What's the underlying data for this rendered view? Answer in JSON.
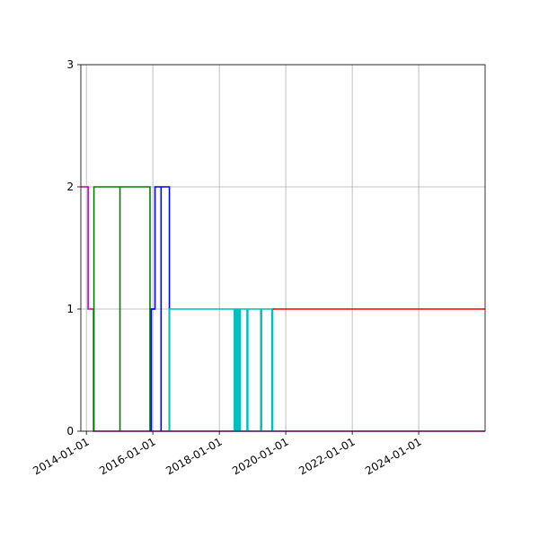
{
  "chart_data": {
    "type": "line",
    "title": "",
    "xlabel": "",
    "ylabel": "",
    "x_axis_type": "date",
    "xlim": [
      "2013-11-01",
      "2025-12-31"
    ],
    "ylim": [
      0,
      3
    ],
    "x_ticks": [
      "2014-01-01",
      "2016-01-01",
      "2018-01-01",
      "2020-01-01",
      "2022-01-01",
      "2024-01-01"
    ],
    "y_ticks": [
      0,
      1,
      2,
      3
    ],
    "grid": true,
    "legend": "none",
    "step_style": "post",
    "series": [
      {
        "color": "#bf00bf",
        "points": [
          [
            "2013-11-01",
            2
          ],
          [
            "2014-01-20",
            2
          ],
          [
            "2014-01-20",
            1
          ],
          [
            "2014-03-20",
            1
          ],
          [
            "2014-03-20",
            0
          ],
          [
            "2025-12-31",
            0
          ]
        ]
      },
      {
        "color": "#008000",
        "points": [
          [
            "2014-03-25",
            0
          ],
          [
            "2014-03-25",
            2
          ],
          [
            "2015-01-05",
            2
          ],
          [
            "2015-01-05",
            0
          ],
          [
            "2015-01-05",
            2
          ],
          [
            "2015-12-01",
            2
          ],
          [
            "2015-12-01",
            0
          ],
          [
            "2015-12-01",
            1
          ],
          [
            "2016-01-20",
            1
          ]
        ]
      },
      {
        "color": "#0000ff",
        "points": [
          [
            "2015-12-15",
            0
          ],
          [
            "2015-12-15",
            1
          ],
          [
            "2016-01-25",
            1
          ],
          [
            "2016-01-25",
            2
          ],
          [
            "2016-04-01",
            2
          ],
          [
            "2016-04-01",
            0
          ],
          [
            "2016-04-01",
            2
          ],
          [
            "2016-07-01",
            2
          ],
          [
            "2016-07-01",
            0
          ]
        ]
      },
      {
        "color": "#00bfbf",
        "points": [
          [
            "2016-07-01",
            0
          ],
          [
            "2016-07-01",
            1
          ],
          [
            "2018-06-15",
            1
          ],
          [
            "2018-06-15",
            0
          ],
          [
            "2018-06-22",
            0
          ],
          [
            "2018-06-22",
            1
          ],
          [
            "2018-07-01",
            1
          ],
          [
            "2018-07-01",
            0
          ],
          [
            "2018-07-10",
            0
          ],
          [
            "2018-07-10",
            1
          ],
          [
            "2018-07-20",
            1
          ],
          [
            "2018-07-20",
            0
          ],
          [
            "2018-07-30",
            0
          ],
          [
            "2018-07-30",
            1
          ],
          [
            "2018-08-10",
            1
          ],
          [
            "2018-08-10",
            0
          ],
          [
            "2018-08-20",
            0
          ],
          [
            "2018-08-20",
            1
          ],
          [
            "2018-11-01",
            1
          ],
          [
            "2018-11-01",
            0
          ],
          [
            "2018-11-10",
            0
          ],
          [
            "2018-11-10",
            1
          ],
          [
            "2019-04-01",
            1
          ],
          [
            "2019-04-01",
            0
          ],
          [
            "2019-04-10",
            0
          ],
          [
            "2019-04-10",
            1
          ],
          [
            "2019-08-01",
            1
          ],
          [
            "2019-08-01",
            0
          ],
          [
            "2019-08-10",
            0
          ],
          [
            "2019-08-10",
            1
          ],
          [
            "2019-09-01",
            1
          ]
        ]
      },
      {
        "color": "#ff0000",
        "points": [
          [
            "2019-08-10",
            1
          ],
          [
            "2025-12-31",
            1
          ]
        ]
      }
    ]
  }
}
